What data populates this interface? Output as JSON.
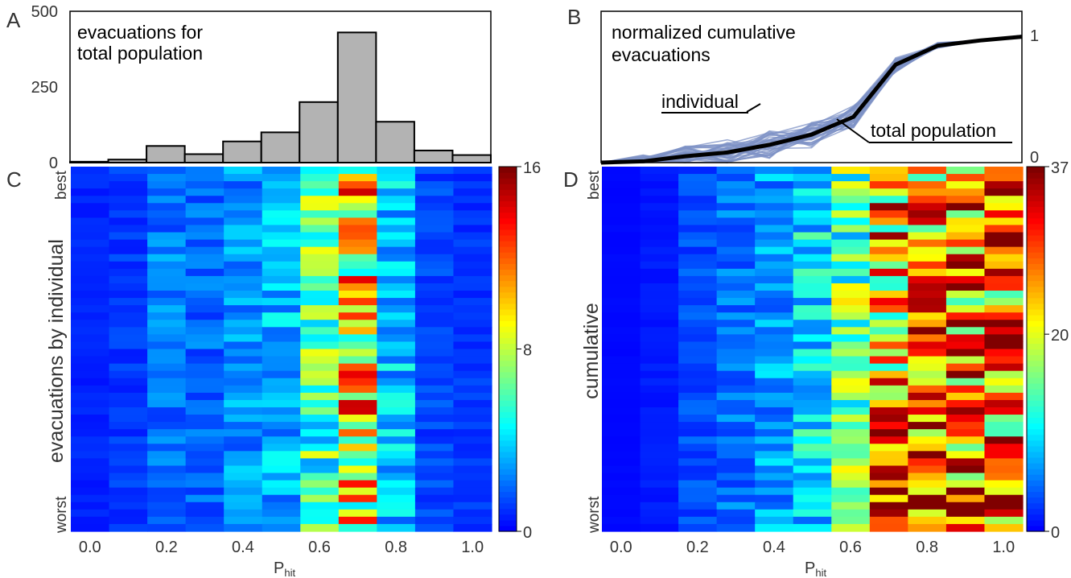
{
  "colors": {
    "frame": "#000000",
    "hist_fill": "#b3b3b3",
    "ind_line": "#7e92c6",
    "mean_line": "#000000"
  },
  "chart_data": [
    {
      "panel": "A",
      "type": "bar",
      "title": "evacuations for total population",
      "title_lines": [
        "evacuations for",
        "total population"
      ],
      "categories": [
        "0.0",
        "0.1",
        "0.2",
        "0.3",
        "0.4",
        "0.5",
        "0.6",
        "0.7",
        "0.8",
        "0.9",
        "1.0"
      ],
      "values": [
        3,
        10,
        55,
        28,
        70,
        100,
        200,
        430,
        135,
        40,
        25
      ],
      "ylim": [
        0,
        500
      ],
      "yticks": [
        0,
        250,
        500
      ]
    },
    {
      "panel": "B",
      "type": "line",
      "title": "normalized cumulative evacuations",
      "title_lines": [
        "normalized cumulative",
        "evacuations"
      ],
      "x": [
        0,
        0.1,
        0.2,
        0.3,
        0.4,
        0.5,
        0.6,
        0.7,
        0.8,
        0.9,
        1.0
      ],
      "ylim": [
        0,
        1
      ],
      "yticks": [
        0,
        1
      ],
      "series": [
        {
          "name": "total population",
          "values": [
            0,
            0.01,
            0.05,
            0.08,
            0.14,
            0.22,
            0.36,
            0.77,
            0.92,
            0.96,
            0.99
          ]
        }
      ],
      "annotations": [
        "individual",
        "total population"
      ]
    },
    {
      "panel": "C",
      "type": "heatmap",
      "ylabel": "evacuations by individual",
      "ytick_labels": [
        "best",
        "worst"
      ],
      "xlabel_main": "P",
      "xlabel_sub": "hit",
      "x_labels": [
        "0.0",
        "0.2",
        "0.4",
        "0.6",
        "0.8",
        "1.0"
      ],
      "n_columns": 11,
      "colorbar_ticks": [
        0,
        8,
        16
      ],
      "vmax": 16,
      "profile": [
        0.6,
        1.0,
        2.2,
        1.8,
        2.6,
        3.2,
        5.8,
        9.5,
        3.4,
        1.2,
        0.9
      ]
    },
    {
      "panel": "D",
      "type": "heatmap",
      "ylabel": "cumulative",
      "ytick_labels": [
        "best",
        "worst"
      ],
      "xlabel_main": "P",
      "xlabel_sub": "hit",
      "x_labels": [
        "0.0",
        "0.2",
        "0.4",
        "0.6",
        "0.8",
        "1.0"
      ],
      "n_columns": 11,
      "colorbar_ticks": [
        0,
        20,
        37
      ],
      "vmax": 37,
      "profile": [
        0.3,
        1.0,
        3.0,
        4.5,
        6.5,
        9.5,
        14.5,
        24.5,
        27.5,
        29.0,
        29.5
      ]
    }
  ],
  "panel_letters": [
    "A",
    "B",
    "C",
    "D"
  ]
}
